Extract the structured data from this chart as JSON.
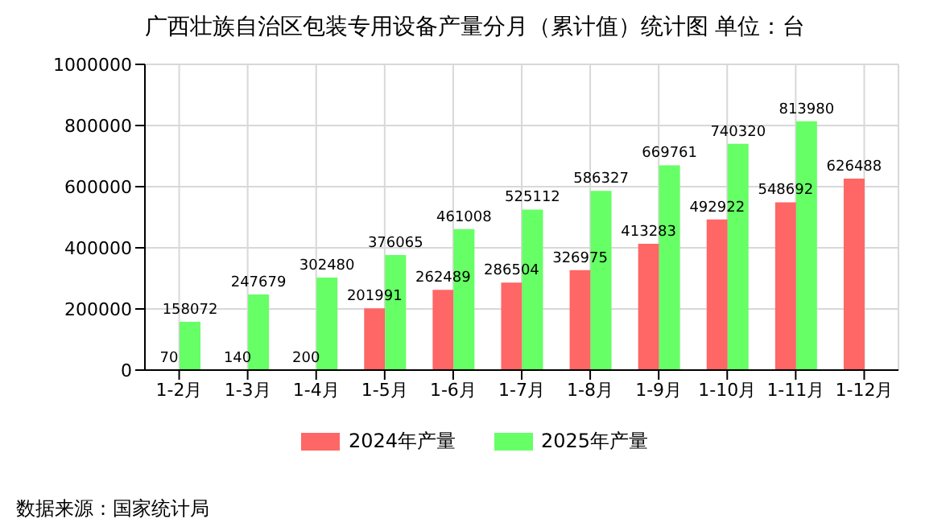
{
  "chart_data": {
    "type": "bar",
    "title": "广西壮族自治区包装专用设备产量分月（累计值）统计图 单位：台",
    "categories": [
      "1-2月",
      "1-3月",
      "1-4月",
      "1-5月",
      "1-6月",
      "1-7月",
      "1-8月",
      "1-9月",
      "1-10月",
      "1-11月",
      "1-12月"
    ],
    "series": [
      {
        "name": "2024年产量",
        "color": "#ff6666",
        "values": [
          70,
          140,
          200,
          201991,
          262489,
          286504,
          326975,
          413283,
          492922,
          548692,
          626488
        ]
      },
      {
        "name": "2025年产量",
        "color": "#66ff66",
        "values": [
          158072,
          247679,
          302480,
          376065,
          461008,
          525112,
          586327,
          669761,
          740320,
          813980,
          null
        ]
      }
    ],
    "ylim": [
      0,
      1000000
    ],
    "yticks": [
      0,
      200000,
      400000,
      600000,
      800000,
      1000000
    ],
    "grid": true,
    "legend": "bottom",
    "data_labels": true,
    "annotations": [
      "数据来源：国家统计局"
    ]
  }
}
